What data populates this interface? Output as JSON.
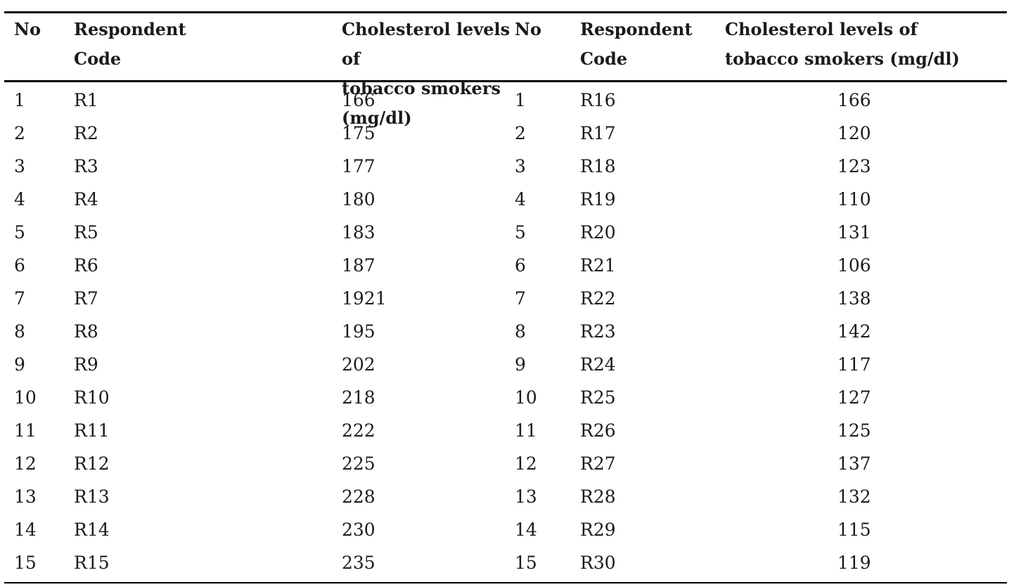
{
  "table": {
    "headers": {
      "no": "No",
      "code_line1": "Respondent",
      "code_line2": "Code",
      "chol_line1": "Cholesterol levels of",
      "chol_line2": "tobacco smokers (mg/dl)"
    },
    "rows": [
      {
        "no1": "1",
        "code1": "R1",
        "chol1": "166",
        "no2": "1",
        "code2": "R16",
        "chol2": "166"
      },
      {
        "no1": "2",
        "code1": "R2",
        "chol1": "175",
        "no2": "2",
        "code2": "R17",
        "chol2": "120"
      },
      {
        "no1": "3",
        "code1": "R3",
        "chol1": "177",
        "no2": "3",
        "code2": "R18",
        "chol2": "123"
      },
      {
        "no1": "4",
        "code1": "R4",
        "chol1": "180",
        "no2": "4",
        "code2": "R19",
        "chol2": "110"
      },
      {
        "no1": "5",
        "code1": "R5",
        "chol1": "183",
        "no2": "5",
        "code2": "R20",
        "chol2": "131"
      },
      {
        "no1": "6",
        "code1": "R6",
        "chol1": "187",
        "no2": "6",
        "code2": "R21",
        "chol2": "106"
      },
      {
        "no1": "7",
        "code1": "R7",
        "chol1": "1921",
        "no2": "7",
        "code2": "R22",
        "chol2": "138"
      },
      {
        "no1": "8",
        "code1": "R8",
        "chol1": "195",
        "no2": "8",
        "code2": "R23",
        "chol2": "142"
      },
      {
        "no1": "9",
        "code1": "R9",
        "chol1": "202",
        "no2": "9",
        "code2": "R24",
        "chol2": "117"
      },
      {
        "no1": "10",
        "code1": "R10",
        "chol1": "218",
        "no2": "10",
        "code2": "R25",
        "chol2": "127"
      },
      {
        "no1": "11",
        "code1": "R11",
        "chol1": "222",
        "no2": "11",
        "code2": "R26",
        "chol2": "125"
      },
      {
        "no1": "12",
        "code1": "R12",
        "chol1": "225",
        "no2": "12",
        "code2": "R27",
        "chol2": "137"
      },
      {
        "no1": "13",
        "code1": "R13",
        "chol1": "228",
        "no2": "13",
        "code2": "R28",
        "chol2": "132"
      },
      {
        "no1": "14",
        "code1": "R14",
        "chol1": "230",
        "no2": "14",
        "code2": "R29",
        "chol2": "115"
      },
      {
        "no1": "15",
        "code1": "R15",
        "chol1": "235",
        "no2": "15",
        "code2": "R30",
        "chol2": "119"
      }
    ]
  }
}
